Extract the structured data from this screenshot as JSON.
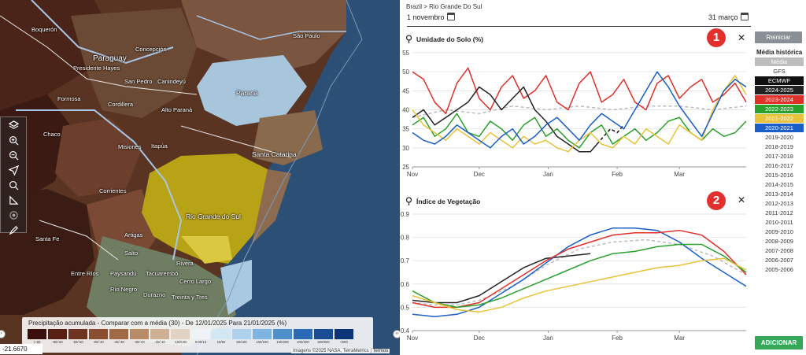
{
  "map": {
    "labels": {
      "boqueron": "Boquerón",
      "paraguay": "Paraguay",
      "presidente_hayes": "Presidente Hayes",
      "concepcion": "Concepción",
      "sao_paulo": "São Paulo",
      "formosa": "Formosa",
      "san_pedro": "San Pedro",
      "canindeyu": "Canindeyú",
      "cordillera": "Cordillera",
      "alto_parana": "Alto Paraná",
      "parana": "Paraná",
      "chaco": "Chaco",
      "misiones": "Misiones",
      "itapua": "Itapúa",
      "santa_catarina": "Santa Catarina",
      "corrientes": "Corrientes",
      "rio_grande_do_sul": "Rio Grande do Sul",
      "santa_fe": "Santa Fe",
      "artigas": "Artigas",
      "salto": "Salto",
      "rivera": "Rivera",
      "entre_rios": "Entre Ríos",
      "paysandu": "Paysandú",
      "tacuarembo": "Tacuarembó",
      "cerro_largo": "Cerro Largo",
      "rio_negro": "Río Negro",
      "durazno": "Durazno",
      "treinta_y_tres": "Treinta y Tres"
    },
    "legend": {
      "title": "Precipitação acumulada - Comparar com a média (30) - De 12/01/2025 Para 21/01/2025 (%)",
      "colors": [
        "#3b0e0e",
        "#5a1f14",
        "#6e3420",
        "#8a4d30",
        "#a26a44",
        "#b88c68",
        "#cfb095",
        "#e3d3c4",
        "#eef3f7",
        "#d3e6f4",
        "#aed2ee",
        "#7fb5e2",
        "#4f8fcc",
        "#2a6ab4",
        "#1a4c96",
        "#0d3478"
      ],
      "ranges": [
        "<-80",
        "-80/-60",
        "-60/-50",
        "-50/-40",
        "-40/-30",
        "-30/-20",
        "-20/-10",
        "-10/0.00",
        "0.00/10",
        "10/50",
        "50/100",
        "100/150",
        "150/200",
        "200/300",
        "300/500",
        ">500"
      ]
    },
    "coords": "-21.6670",
    "attribution": "Imagens ©2025 NASA, TerraMetrics | Termos",
    "tools": [
      "layers-icon",
      "zoom-in-icon",
      "zoom-out-icon",
      "locate-icon",
      "search-icon",
      "measure-icon",
      "target-icon",
      "draw-icon"
    ]
  },
  "panel": {
    "breadcrumb": "Brazil > Rio Grande Do Sul",
    "start_date": "1 novembro",
    "end_date": "31 março",
    "reset_label": "Reiniciar",
    "sidebar_heading": "Média histórica",
    "add_label": "ADICIONAR",
    "years": [
      {
        "label": "Média",
        "color": "#bdbdbd"
      },
      {
        "label": "GFS",
        "color": ""
      },
      {
        "label": "ECMWF",
        "color": "#111111"
      },
      {
        "label": "2024-2025",
        "color": "#222222"
      },
      {
        "label": "2023-2024",
        "color": "#e0302a"
      },
      {
        "label": "2022-2023",
        "color": "#2ca02c"
      },
      {
        "label": "2021-2022",
        "color": "#e8c23a"
      },
      {
        "label": "2020-2021",
        "color": "#1a5fc8"
      },
      {
        "label": "2019-2020",
        "color": ""
      },
      {
        "label": "2018-2019",
        "color": ""
      },
      {
        "label": "2017-2018",
        "color": ""
      },
      {
        "label": "2016-2017",
        "color": ""
      },
      {
        "label": "2015-2016",
        "color": ""
      },
      {
        "label": "2014-2015",
        "color": ""
      },
      {
        "label": "2013-2014",
        "color": ""
      },
      {
        "label": "2012-2013",
        "color": ""
      },
      {
        "label": "2011-2012",
        "color": ""
      },
      {
        "label": "2010-2011",
        "color": ""
      },
      {
        "label": "2009-2010",
        "color": ""
      },
      {
        "label": "2008-2009",
        "color": ""
      },
      {
        "label": "2007-2008",
        "color": ""
      },
      {
        "label": "2006-2007",
        "color": ""
      },
      {
        "label": "2005-2006",
        "color": ""
      }
    ]
  },
  "chart_data": [
    {
      "type": "line",
      "title": "Umidade do Solo (%)",
      "badge": "1",
      "ylim": [
        25,
        55
      ],
      "yticks": [
        25,
        30,
        35,
        40,
        45,
        50,
        55
      ],
      "xticks": [
        "Nov",
        "Dec",
        "Jan",
        "Feb",
        "Mar"
      ],
      "xtick_days": [
        0,
        30,
        61,
        92,
        120
      ],
      "xmax": 150,
      "series": [
        {
          "name": "Média",
          "color": "#bbbbbb",
          "dashed": true,
          "x": [
            0,
            15,
            30,
            45,
            60,
            75,
            90,
            105,
            120,
            135,
            150
          ],
          "y": [
            38,
            40,
            39,
            41,
            40,
            41,
            40,
            41,
            41,
            40,
            41
          ]
        },
        {
          "name": "2023-2024",
          "color": "#e0302a",
          "x": [
            0,
            5,
            10,
            15,
            20,
            25,
            30,
            35,
            40,
            45,
            50,
            55,
            60,
            65,
            70,
            75,
            80,
            85,
            90,
            95,
            100,
            105,
            110,
            115,
            120,
            125,
            130,
            135,
            140,
            145,
            150
          ],
          "y": [
            50,
            48,
            42,
            39,
            47,
            51,
            43,
            40,
            46,
            49,
            43,
            45,
            49,
            42,
            40,
            47,
            50,
            42,
            44,
            48,
            42,
            40,
            47,
            49,
            43,
            46,
            48,
            42,
            44,
            47,
            42
          ]
        },
        {
          "name": "2024-2025",
          "color": "#222222",
          "x": [
            0,
            5,
            10,
            15,
            20,
            25,
            30,
            35,
            40,
            45,
            50,
            55,
            60,
            65,
            70,
            75,
            80,
            83
          ],
          "y": [
            38,
            40,
            36,
            38,
            40,
            42,
            46,
            44,
            40,
            43,
            46,
            40,
            37,
            33,
            31,
            29,
            29,
            31
          ]
        },
        {
          "name": "ECMWF",
          "color": "#111111",
          "dashed": true,
          "x": [
            83,
            86,
            89,
            92,
            95
          ],
          "y": [
            31,
            33,
            35,
            34,
            36
          ]
        },
        {
          "name": "2022-2023",
          "color": "#2ca02c",
          "x": [
            0,
            5,
            10,
            15,
            20,
            25,
            30,
            35,
            40,
            45,
            50,
            55,
            60,
            65,
            70,
            75,
            80,
            85,
            90,
            95,
            100,
            105,
            110,
            115,
            120,
            125,
            130,
            135,
            140,
            145,
            150
          ],
          "y": [
            36,
            38,
            33,
            35,
            39,
            34,
            33,
            37,
            35,
            32,
            36,
            38,
            33,
            35,
            32,
            30,
            34,
            36,
            31,
            33,
            35,
            32,
            34,
            37,
            38,
            34,
            32,
            35,
            33,
            34,
            37
          ]
        },
        {
          "name": "2021-2022",
          "color": "#e8c23a",
          "x": [
            0,
            5,
            10,
            15,
            20,
            25,
            30,
            35,
            40,
            45,
            50,
            55,
            60,
            65,
            70,
            75,
            80,
            85,
            90,
            95,
            100,
            105,
            110,
            115,
            120,
            125,
            130,
            135,
            140,
            145,
            150
          ],
          "y": [
            40,
            36,
            34,
            32,
            35,
            33,
            31,
            34,
            32,
            30,
            33,
            31,
            32,
            30,
            29,
            32,
            34,
            31,
            30,
            33,
            31,
            35,
            33,
            31,
            36,
            34,
            32,
            40,
            45,
            49,
            44
          ]
        },
        {
          "name": "2020-2021",
          "color": "#1a5fc8",
          "x": [
            0,
            5,
            10,
            15,
            20,
            25,
            30,
            35,
            40,
            45,
            50,
            55,
            60,
            65,
            70,
            75,
            80,
            85,
            90,
            95,
            100,
            105,
            110,
            115,
            120,
            125,
            130,
            135,
            140,
            145,
            150
          ],
          "y": [
            34,
            32,
            31,
            33,
            36,
            34,
            32,
            30,
            33,
            35,
            31,
            33,
            36,
            38,
            35,
            32,
            36,
            39,
            37,
            35,
            40,
            45,
            50,
            46,
            41,
            37,
            33,
            39,
            45,
            48,
            46
          ]
        }
      ]
    },
    {
      "type": "line",
      "title": "Índice de Vegetação",
      "badge": "2",
      "ylim": [
        0.4,
        0.9
      ],
      "yticks": [
        0.4,
        0.5,
        0.6,
        0.7,
        0.8,
        0.9
      ],
      "xticks": [
        "Nov",
        "Dec",
        "Jan",
        "Feb",
        "Mar"
      ],
      "xtick_days": [
        0,
        30,
        61,
        92,
        120
      ],
      "xmax": 150,
      "series": [
        {
          "name": "Média",
          "color": "#bbbbbb",
          "dashed": true,
          "x": [
            0,
            10,
            20,
            30,
            45,
            60,
            75,
            90,
            105,
            120,
            135,
            150
          ],
          "y": [
            0.52,
            0.51,
            0.51,
            0.53,
            0.59,
            0.68,
            0.75,
            0.78,
            0.79,
            0.77,
            0.72,
            0.64
          ]
        },
        {
          "name": "2024-2025",
          "color": "#222222",
          "x": [
            0,
            10,
            20,
            30,
            40,
            50,
            60,
            70,
            80
          ],
          "y": [
            0.53,
            0.52,
            0.52,
            0.55,
            0.61,
            0.67,
            0.71,
            0.72,
            0.73
          ]
        },
        {
          "name": "2020-2021",
          "color": "#1a5fc8",
          "x": [
            0,
            10,
            20,
            30,
            40,
            50,
            60,
            70,
            80,
            90,
            100,
            110,
            120,
            130,
            140,
            150
          ],
          "y": [
            0.47,
            0.46,
            0.47,
            0.5,
            0.56,
            0.62,
            0.69,
            0.76,
            0.81,
            0.84,
            0.84,
            0.83,
            0.78,
            0.71,
            0.65,
            0.59
          ]
        },
        {
          "name": "2023-2024",
          "color": "#e0302a",
          "x": [
            0,
            10,
            20,
            30,
            40,
            50,
            60,
            70,
            80,
            90,
            100,
            110,
            120,
            130,
            140,
            150
          ],
          "y": [
            0.52,
            0.5,
            0.5,
            0.52,
            0.58,
            0.64,
            0.7,
            0.75,
            0.78,
            0.81,
            0.82,
            0.82,
            0.83,
            0.81,
            0.74,
            0.64
          ]
        },
        {
          "name": "2022-2023",
          "color": "#2ca02c",
          "x": [
            0,
            10,
            20,
            30,
            40,
            50,
            60,
            70,
            80,
            90,
            100,
            110,
            120,
            130,
            140,
            150
          ],
          "y": [
            0.57,
            0.52,
            0.5,
            0.51,
            0.54,
            0.58,
            0.62,
            0.66,
            0.7,
            0.73,
            0.74,
            0.76,
            0.77,
            0.77,
            0.72,
            0.65
          ]
        },
        {
          "name": "2021-2022",
          "color": "#e8c23a",
          "x": [
            0,
            10,
            20,
            30,
            40,
            50,
            60,
            70,
            80,
            90,
            100,
            110,
            120,
            130,
            140,
            150
          ],
          "y": [
            0.55,
            0.52,
            0.49,
            0.48,
            0.5,
            0.54,
            0.57,
            0.59,
            0.61,
            0.63,
            0.65,
            0.67,
            0.68,
            0.7,
            0.71,
            0.66
          ]
        }
      ]
    }
  ]
}
